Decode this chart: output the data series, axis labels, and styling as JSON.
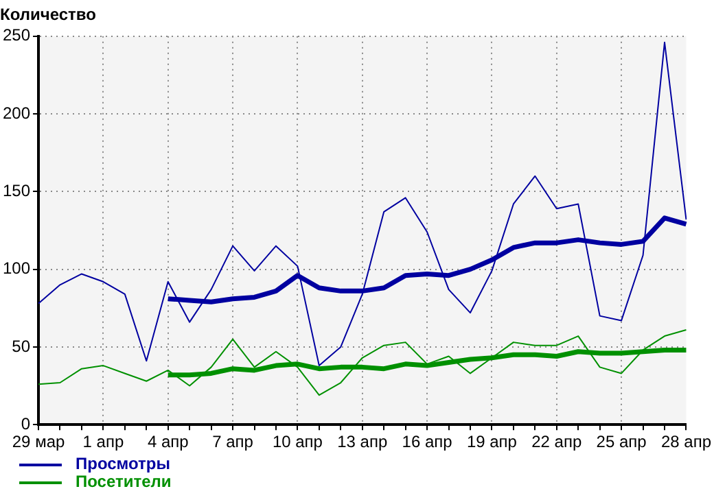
{
  "chart_data": {
    "type": "line",
    "title": "Количество",
    "categories": [
      "29 мар",
      null,
      null,
      "1 апр",
      null,
      null,
      "4 апр",
      null,
      null,
      "7 апр",
      null,
      null,
      "10 апр",
      null,
      null,
      "13 апр",
      null,
      null,
      "16 апр",
      null,
      null,
      "19 апр",
      null,
      null,
      "22 апр",
      null,
      null,
      "25 апр",
      null,
      null,
      "28 апр"
    ],
    "series": [
      {
        "color": "#0000a0",
        "values": [
          78,
          90,
          97,
          92,
          84,
          41,
          92,
          66,
          87,
          115,
          99,
          115,
          102,
          38,
          50,
          84,
          137,
          146,
          124,
          87,
          72,
          99,
          142,
          160,
          139,
          142,
          70,
          67,
          109,
          246,
          132
        ]
      },
      {
        "color": "#009000",
        "values": [
          26,
          27,
          36,
          38,
          33,
          28,
          35,
          25,
          37,
          55,
          37,
          47,
          37,
          19,
          27,
          43,
          51,
          53,
          39,
          44,
          33,
          43,
          53,
          51,
          51,
          57,
          37,
          33,
          48,
          57,
          61
        ]
      },
      {
        "name": "Просмотры",
        "color": "#0000a0",
        "values": [
          null,
          null,
          null,
          null,
          null,
          null,
          81,
          80,
          79,
          81,
          82,
          86,
          96,
          88,
          86,
          86,
          88,
          96,
          97,
          96,
          100,
          106,
          114,
          117,
          117,
          119,
          117,
          116,
          118,
          133,
          129
        ]
      },
      {
        "name": "Посетители",
        "color": "#009000",
        "values": [
          null,
          null,
          null,
          null,
          null,
          null,
          32,
          32,
          33,
          36,
          35,
          38,
          39,
          36,
          37,
          37,
          36,
          39,
          38,
          40,
          42,
          43,
          45,
          45,
          44,
          47,
          46,
          46,
          47,
          48,
          48
        ]
      }
    ],
    "ylim": [
      0,
      250
    ],
    "yticks": [
      0,
      50,
      100,
      150,
      200,
      250
    ],
    "grid": true,
    "legend": "bottom left",
    "marker": "none",
    "line_style": "solid"
  }
}
